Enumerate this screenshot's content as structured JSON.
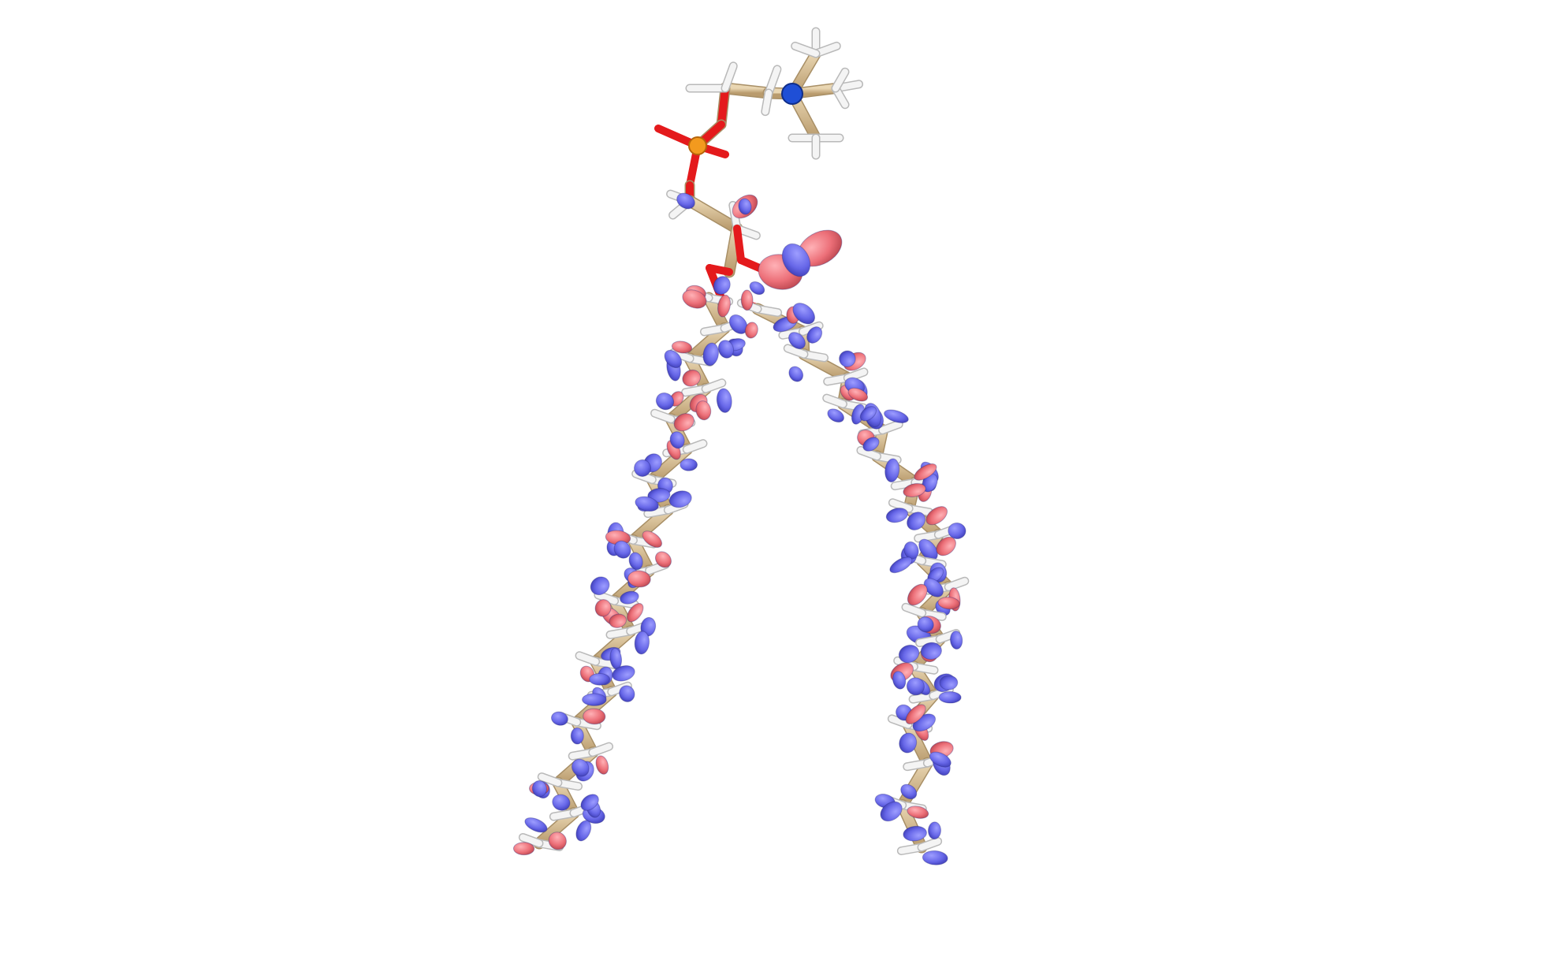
{
  "scene": {
    "subject": "",
    "colors": {
      "background": "#ffffff",
      "carbon_bond": "#d2b88e",
      "carbon_bond_edge": "#a88f66",
      "hydrogen": "#f4f4f4",
      "hydrogen_edge": "#b9b9b9",
      "oxygen": "#e41a1c",
      "nitrogen": "#1f4fd6",
      "phosphorus": "#f39a1e",
      "lobe_positive": "#6e6ef0",
      "lobe_negative": "#ec6f78"
    }
  }
}
